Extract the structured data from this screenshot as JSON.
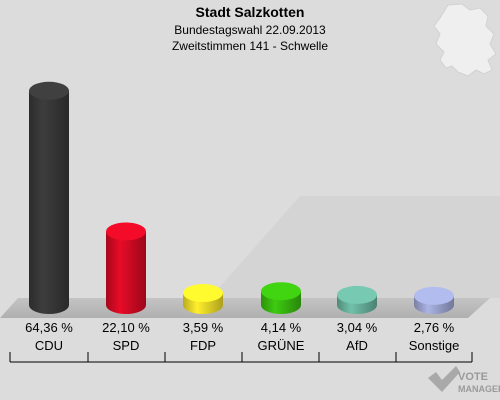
{
  "chart_data": {
    "type": "bar",
    "title": "Stadt Salzkotten",
    "subtitle1": "Bundestagswahl 22.09.2013",
    "subtitle2": "Zweitstimmen 141 - Schwelle",
    "categories": [
      "CDU",
      "SPD",
      "FDP",
      "GRÜNE",
      "AfD",
      "Sonstige"
    ],
    "values": [
      64.36,
      22.1,
      3.59,
      4.14,
      3.04,
      2.76
    ],
    "value_labels": [
      "64,36 %",
      "22,10 %",
      "3,59 %",
      "4,14 %",
      "3,04 %",
      "2,76 %"
    ],
    "colors": [
      "#3a3a3a",
      "#dd0a25",
      "#f7e42a",
      "#3bc10f",
      "#6cb8a1",
      "#a3abd9"
    ],
    "ylim": [
      0,
      70
    ],
    "grid": false
  },
  "watermark": {
    "line1": "VOTE",
    "line2": "MANAGER"
  }
}
